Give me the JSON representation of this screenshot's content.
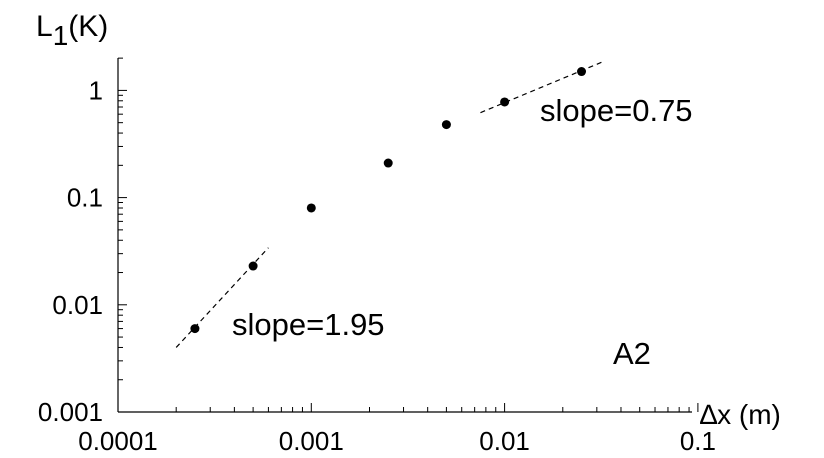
{
  "chart_data": {
    "type": "scatter",
    "title": "",
    "xlabel": "∆x (m)",
    "ylabel": {
      "main": "L",
      "sub": "1",
      "rest": "(K)"
    },
    "xscale": "log",
    "yscale": "log",
    "xlim": [
      0.0001,
      0.1
    ],
    "ylim": [
      0.001,
      2
    ],
    "grid": false,
    "xticks": [
      0.0001,
      0.001,
      0.01,
      0.1
    ],
    "xticklabels": [
      "0.0001",
      "0.001",
      "0.01",
      "0.1"
    ],
    "yticks": [
      0.001,
      0.01,
      0.1,
      1
    ],
    "yticklabels": [
      "0.001",
      "0.01",
      "0.1",
      "1"
    ],
    "points": [
      {
        "x": 0.00025,
        "y": 0.006
      },
      {
        "x": 0.0005,
        "y": 0.023
      },
      {
        "x": 0.001,
        "y": 0.08
      },
      {
        "x": 0.0025,
        "y": 0.21
      },
      {
        "x": 0.005,
        "y": 0.48
      },
      {
        "x": 0.01,
        "y": 0.78
      },
      {
        "x": 0.025,
        "y": 1.5
      }
    ],
    "fit_lines": [
      {
        "label": "slope=1.95",
        "slope": 1.95,
        "x_start": 0.0002,
        "x_end": 0.0006,
        "y_start": 0.004
      },
      {
        "label": "slope=0.75",
        "slope": 0.75,
        "x_start": 0.0075,
        "x_end": 0.033,
        "y_start": 0.62
      }
    ],
    "annotations": [
      {
        "text": "slope=0.75"
      },
      {
        "text": "slope=1.95"
      },
      {
        "text": "A2"
      }
    ]
  }
}
